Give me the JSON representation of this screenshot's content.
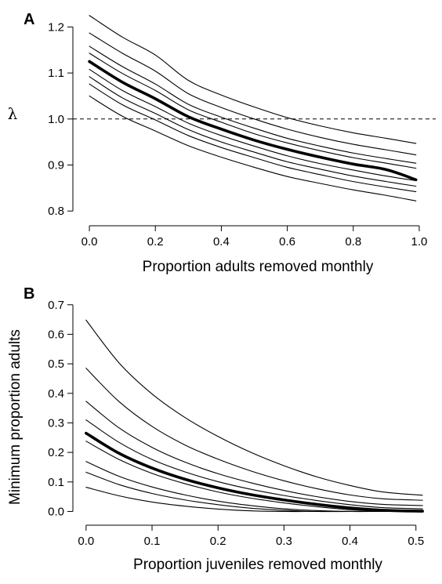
{
  "chart_data": [
    {
      "panel": "A",
      "type": "line",
      "xlabel": "Proportion adults removed monthly",
      "ylabel": "λ",
      "xlim": [
        -0.05,
        1.05
      ],
      "ylim": [
        0.785,
        1.245
      ],
      "xticks": [
        0.0,
        0.2,
        0.4,
        0.6,
        0.8,
        1.0
      ],
      "xtick_labels": [
        "0.0",
        "0.2",
        "0.4",
        "0.6",
        "0.8",
        "1.0"
      ],
      "yticks": [
        0.8,
        0.9,
        1.0,
        1.1,
        1.2
      ],
      "ytick_labels": [
        "0.8",
        "0.9",
        "1.0",
        "1.1",
        "1.2"
      ],
      "reference_line": {
        "y": 1.0,
        "style": "dashed"
      },
      "grid": false,
      "x": [
        0.0,
        0.1,
        0.2,
        0.3,
        0.4,
        0.5,
        0.6,
        0.7,
        0.8,
        0.9,
        0.99
      ],
      "series": [
        {
          "emphasis": false,
          "values": [
            1.225,
            1.178,
            1.139,
            1.084,
            1.052,
            1.026,
            1.003,
            0.985,
            0.97,
            0.958,
            0.947
          ]
        },
        {
          "emphasis": false,
          "values": [
            1.187,
            1.143,
            1.104,
            1.055,
            1.025,
            1.0,
            0.978,
            0.96,
            0.945,
            0.933,
            0.922
          ]
        },
        {
          "emphasis": false,
          "values": [
            1.158,
            1.114,
            1.076,
            1.032,
            1.004,
            0.98,
            0.958,
            0.941,
            0.926,
            0.914,
            0.904
          ]
        },
        {
          "emphasis": false,
          "values": [
            1.143,
            1.099,
            1.062,
            1.02,
            0.993,
            0.968,
            0.948,
            0.931,
            0.916,
            0.904,
            0.893
          ]
        },
        {
          "emphasis": true,
          "values": [
            1.125,
            1.08,
            1.044,
            1.005,
            0.978,
            0.954,
            0.934,
            0.917,
            0.902,
            0.89,
            0.868
          ]
        },
        {
          "emphasis": false,
          "values": [
            1.108,
            1.062,
            1.027,
            0.991,
            0.964,
            0.941,
            0.92,
            0.903,
            0.889,
            0.876,
            0.866
          ]
        },
        {
          "emphasis": false,
          "values": [
            1.092,
            1.046,
            1.012,
            0.977,
            0.95,
            0.928,
            0.907,
            0.891,
            0.876,
            0.864,
            0.854
          ]
        },
        {
          "emphasis": false,
          "values": [
            1.076,
            1.031,
            0.998,
            0.964,
            0.938,
            0.916,
            0.895,
            0.879,
            0.864,
            0.852,
            0.842
          ]
        },
        {
          "emphasis": false,
          "values": [
            1.05,
            1.006,
            0.974,
            0.942,
            0.917,
            0.895,
            0.875,
            0.86,
            0.846,
            0.834,
            0.822
          ]
        }
      ]
    },
    {
      "panel": "B",
      "type": "line",
      "xlabel": "Proportion juveniles removed monthly",
      "ylabel": "Minimum proportion adults",
      "xlim": [
        -0.02,
        0.53
      ],
      "ylim": [
        -0.02,
        0.71
      ],
      "xticks": [
        0.0,
        0.1,
        0.2,
        0.3,
        0.4,
        0.5
      ],
      "xtick_labels": [
        "0.0",
        "0.1",
        "0.2",
        "0.3",
        "0.4",
        "0.5"
      ],
      "yticks": [
        0.0,
        0.1,
        0.2,
        0.3,
        0.4,
        0.5,
        0.6,
        0.7
      ],
      "ytick_labels": [
        "0.0",
        "0.1",
        "0.2",
        "0.3",
        "0.4",
        "0.5",
        "0.6",
        "0.7"
      ],
      "grid": false,
      "x": [
        0.0,
        0.05,
        0.1,
        0.15,
        0.2,
        0.25,
        0.3,
        0.35,
        0.4,
        0.45,
        0.51
      ],
      "series": [
        {
          "emphasis": false,
          "values": [
            0.648,
            0.503,
            0.398,
            0.318,
            0.254,
            0.2,
            0.155,
            0.117,
            0.088,
            0.066,
            0.055
          ]
        },
        {
          "emphasis": false,
          "values": [
            0.485,
            0.372,
            0.288,
            0.225,
            0.177,
            0.137,
            0.104,
            0.077,
            0.056,
            0.043,
            0.038
          ]
        },
        {
          "emphasis": false,
          "values": [
            0.373,
            0.283,
            0.217,
            0.167,
            0.128,
            0.097,
            0.071,
            0.05,
            0.034,
            0.024,
            0.02
          ]
        },
        {
          "emphasis": false,
          "values": [
            0.31,
            0.234,
            0.176,
            0.134,
            0.101,
            0.075,
            0.054,
            0.037,
            0.023,
            0.013,
            0.009
          ]
        },
        {
          "emphasis": true,
          "values": [
            0.265,
            0.197,
            0.147,
            0.109,
            0.08,
            0.057,
            0.039,
            0.024,
            0.012,
            0.004,
            0.001
          ]
        },
        {
          "emphasis": false,
          "values": [
            0.238,
            0.176,
            0.129,
            0.094,
            0.066,
            0.045,
            0.029,
            0.016,
            0.006,
            0.001,
            0.0
          ]
        },
        {
          "emphasis": false,
          "values": [
            0.169,
            0.119,
            0.083,
            0.056,
            0.035,
            0.02,
            0.009,
            0.003,
            0.0,
            0.0,
            0.0
          ]
        },
        {
          "emphasis": false,
          "values": [
            0.133,
            0.091,
            0.061,
            0.039,
            0.023,
            0.011,
            0.004,
            0.0,
            0.0,
            0.0,
            0.0
          ]
        },
        {
          "emphasis": false,
          "values": [
            0.082,
            0.053,
            0.032,
            0.018,
            0.008,
            0.002,
            0.0,
            0.0,
            0.0,
            0.0,
            0.0
          ]
        }
      ]
    }
  ]
}
